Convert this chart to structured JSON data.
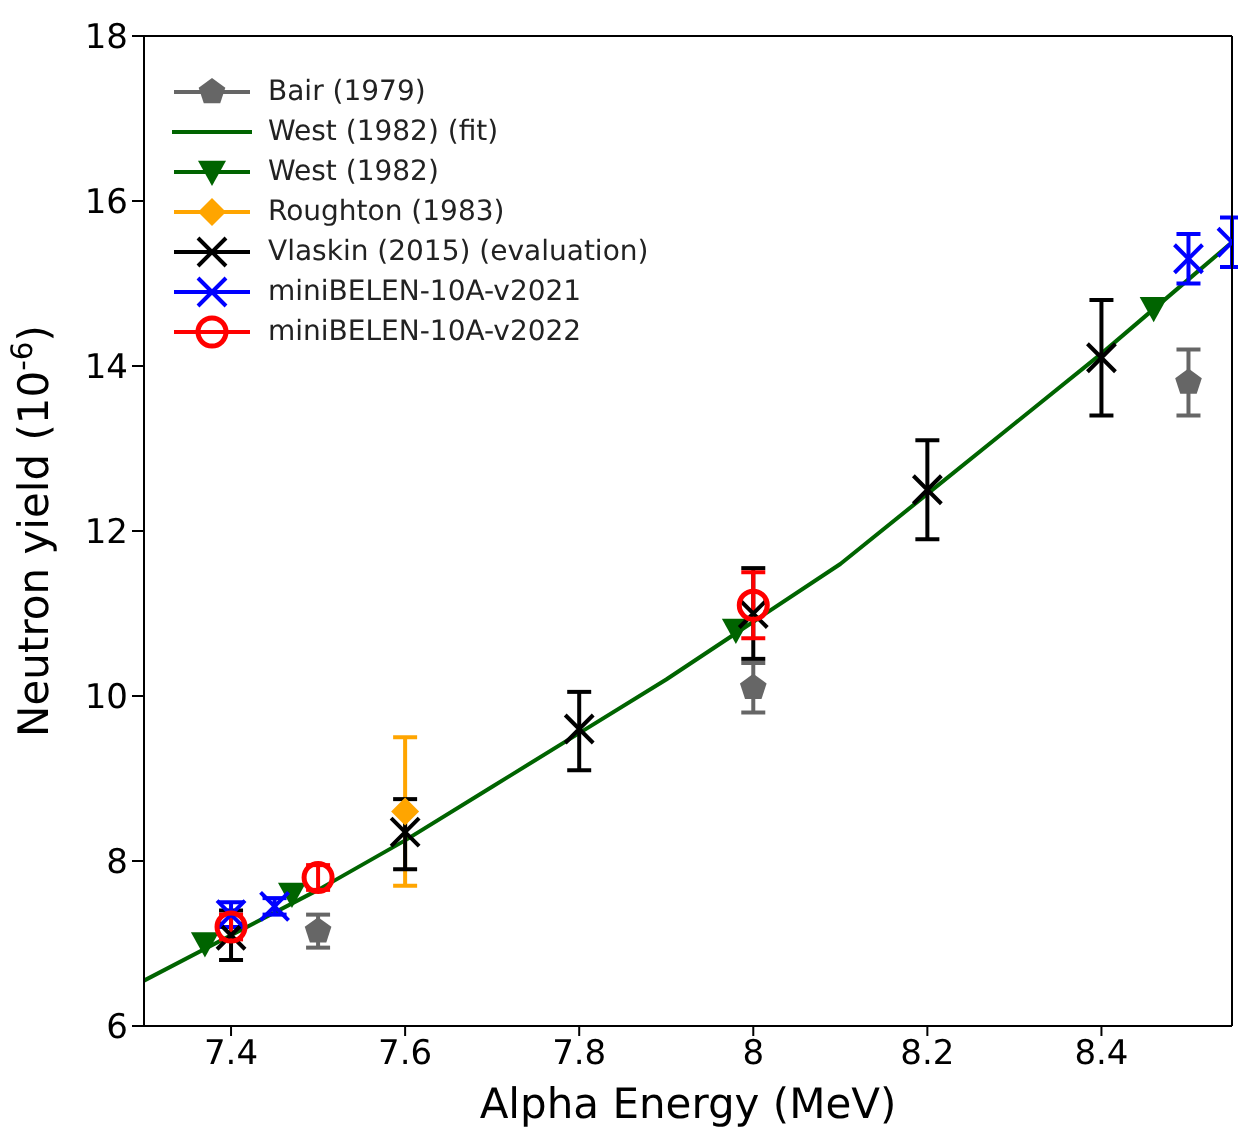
{
  "chart_data": {
    "type": "scatter",
    "xlabel": "Alpha Energy (MeV)",
    "ylabel": "Neutron yield (10$^{-6}$)",
    "xlim": [
      7.3,
      8.55
    ],
    "xticks": [
      7.4,
      7.6,
      7.8,
      8,
      8.2,
      8.4
    ],
    "ylim": [
      6,
      18
    ],
    "yticks": [
      6,
      8,
      10,
      12,
      14,
      16,
      18
    ],
    "legend": "top left",
    "series": [
      {
        "name": "Bair (1979)",
        "color": "#666666",
        "x": [
          7.5,
          8.0,
          8.5
        ],
        "values": [
          7.15,
          10.1,
          13.8
        ],
        "errors": [
          0.2,
          0.3,
          0.4
        ]
      },
      {
        "name": "West (1982) (fit)",
        "type": "line",
        "color": "#006400",
        "x": [
          7.3,
          7.4,
          7.5,
          7.6,
          7.7,
          7.8,
          7.9,
          8.0,
          8.1,
          8.2,
          8.3,
          8.4,
          8.5,
          8.55
        ],
        "values": [
          6.55,
          7.1,
          7.65,
          8.25,
          8.9,
          9.55,
          10.2,
          10.9,
          11.6,
          12.45,
          13.3,
          14.15,
          15.05,
          15.5
        ]
      },
      {
        "name": "West (1982)",
        "marker": "triangle",
        "color": "#006400",
        "x": [
          7.37,
          7.47,
          7.98,
          8.46
        ],
        "values": [
          7.0,
          7.6,
          10.8,
          14.7
        ]
      },
      {
        "name": "Roughton (1983)",
        "marker": "diamond",
        "color": "#ffa500",
        "x": [
          7.6
        ],
        "values": [
          8.6
        ],
        "errors": [
          [
            7.7,
            9.5
          ]
        ]
      },
      {
        "name": "Vlaskin (2015) (evaluation)",
        "marker": "cross",
        "color": "#000000",
        "x": [
          7.4,
          7.6,
          7.8,
          8.0,
          8.2,
          8.4
        ],
        "values": [
          7.1,
          8.35,
          9.6,
          11.0,
          12.5,
          14.1
        ],
        "errors": [
          [
            6.8,
            7.4
          ],
          [
            7.9,
            8.75
          ],
          [
            9.1,
            10.05
          ],
          [
            10.45,
            11.55
          ],
          [
            11.9,
            13.1
          ],
          [
            13.4,
            14.8
          ]
        ]
      },
      {
        "name": "miniBELEN-10A-v2021",
        "marker": "cross",
        "color": "#0000ff",
        "x": [
          7.4,
          7.45,
          8.5,
          8.55
        ],
        "values": [
          7.35,
          7.45,
          15.3,
          15.5
        ],
        "errors": [
          0.15,
          0.1,
          0.3,
          0.3
        ]
      },
      {
        "name": "miniBELEN-10A-v2022",
        "marker": "circle",
        "color": "#ff0000",
        "x": [
          7.4,
          7.5,
          8.0
        ],
        "values": [
          7.2,
          7.8,
          11.1
        ],
        "errors": [
          0.15,
          0.15,
          0.4
        ]
      }
    ]
  }
}
